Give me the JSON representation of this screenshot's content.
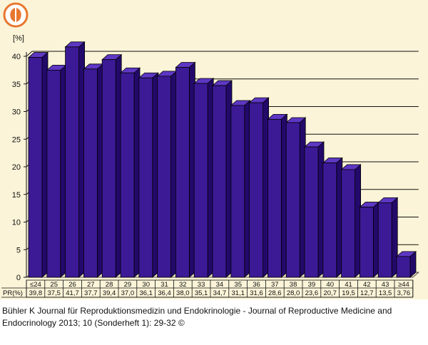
{
  "chart_data": {
    "type": "bar",
    "title": "",
    "xlabel": "PR(%)",
    "ylabel": "[%]",
    "ylim": [
      0,
      40
    ],
    "yticks": [
      "0",
      "5",
      "10",
      "15",
      "20",
      "25",
      "30",
      "35",
      "40"
    ],
    "categories": [
      "≤24",
      "25",
      "26",
      "27",
      "28",
      "29",
      "30",
      "31",
      "32",
      "33",
      "34",
      "35",
      "36",
      "37",
      "38",
      "39",
      "40",
      "41",
      "42",
      "43",
      "≥44"
    ],
    "values": [
      39.8,
      37.5,
      41.7,
      37.7,
      39.4,
      37.0,
      36.1,
      36.4,
      38.0,
      35.1,
      34.7,
      31.1,
      31.6,
      28.6,
      28.0,
      23.6,
      20.7,
      19.5,
      12.7,
      13.5,
      3.76
    ],
    "value_labels": [
      "39,8",
      "37,5",
      "41,7",
      "37,7",
      "39,4",
      "37,0",
      "36,1",
      "36,4",
      "38,0",
      "35,1",
      "34,7",
      "31,1",
      "31,6",
      "28,6",
      "28,0",
      "23,6",
      "20,7",
      "19,5",
      "12,7",
      "13,5",
      "3,76"
    ],
    "grid": true,
    "bar_color": "#3c1a96",
    "bar_top_color": "#5e37c4",
    "bar_side_color": "#23096a"
  },
  "caption": {
    "text": "Bühler K Journal für Reproduktionsmedizin und Endokrinologie - Journal of Reproductive Medicine and Endocrinology 2013; 10 (Sonderheft 1): 29-32 ©"
  },
  "logo": {
    "icon": "journal-logo-icon",
    "color": "#e8772e"
  }
}
